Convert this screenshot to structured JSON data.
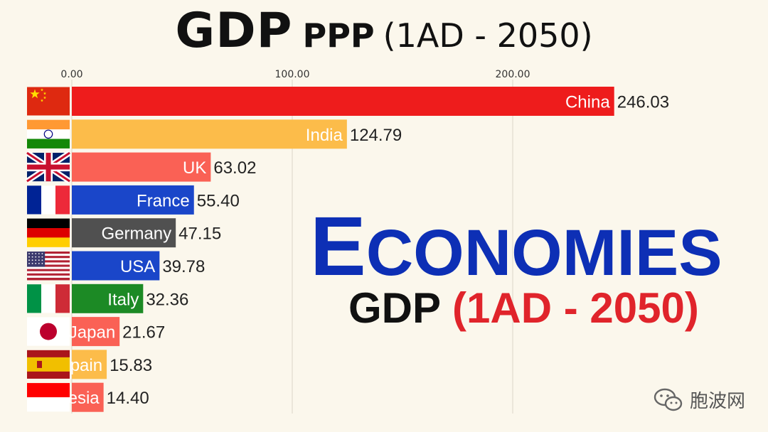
{
  "header": {
    "title_main": "GDP",
    "title_sub": "PPP",
    "title_range": "(1AD - 2050)"
  },
  "overlay": {
    "economies_first": "E",
    "economies_rest": "CONOMIES",
    "gdp_label": "GDP",
    "gdp_range": "(1AD - 2050)"
  },
  "watermark": {
    "text": "胞波网",
    "icon": "wechat-icon"
  },
  "chart_data": {
    "type": "bar",
    "orientation": "horizontal",
    "x_ticks": [
      "0.00",
      "100.00",
      "200.00"
    ],
    "x_tick_values": [
      0,
      100,
      200
    ],
    "xlim": [
      0,
      246.03
    ],
    "categories": [
      "China",
      "India",
      "UK",
      "France",
      "Germany",
      "USA",
      "Italy",
      "Japan",
      "Spain",
      "Indonesia"
    ],
    "visible_labels": [
      "China",
      "India",
      "UK",
      "France",
      "Germany",
      "USA",
      "Italy",
      "Japan",
      "pain",
      "esia"
    ],
    "values": [
      246.03,
      124.79,
      63.02,
      55.4,
      47.15,
      39.78,
      32.36,
      21.67,
      15.83,
      14.4
    ],
    "value_labels": [
      "246.03",
      "124.79",
      "63.02",
      "55.40",
      "47.15",
      "39.78",
      "32.36",
      "21.67",
      "15.83",
      "14.40"
    ],
    "colors": [
      "#ee1c1c",
      "#fcbc4a",
      "#fa6155",
      "#1a46c9",
      "#505050",
      "#1a46c9",
      "#1c8a25",
      "#fa6155",
      "#fcbc4a",
      "#fa6155"
    ],
    "flags": [
      "china-flag-icon",
      "india-flag-icon",
      "uk-flag-icon",
      "france-flag-icon",
      "germany-flag-icon",
      "usa-flag-icon",
      "italy-flag-icon",
      "japan-flag-icon",
      "spain-flag-icon",
      "indonesia-flag-icon"
    ],
    "grid": true
  }
}
